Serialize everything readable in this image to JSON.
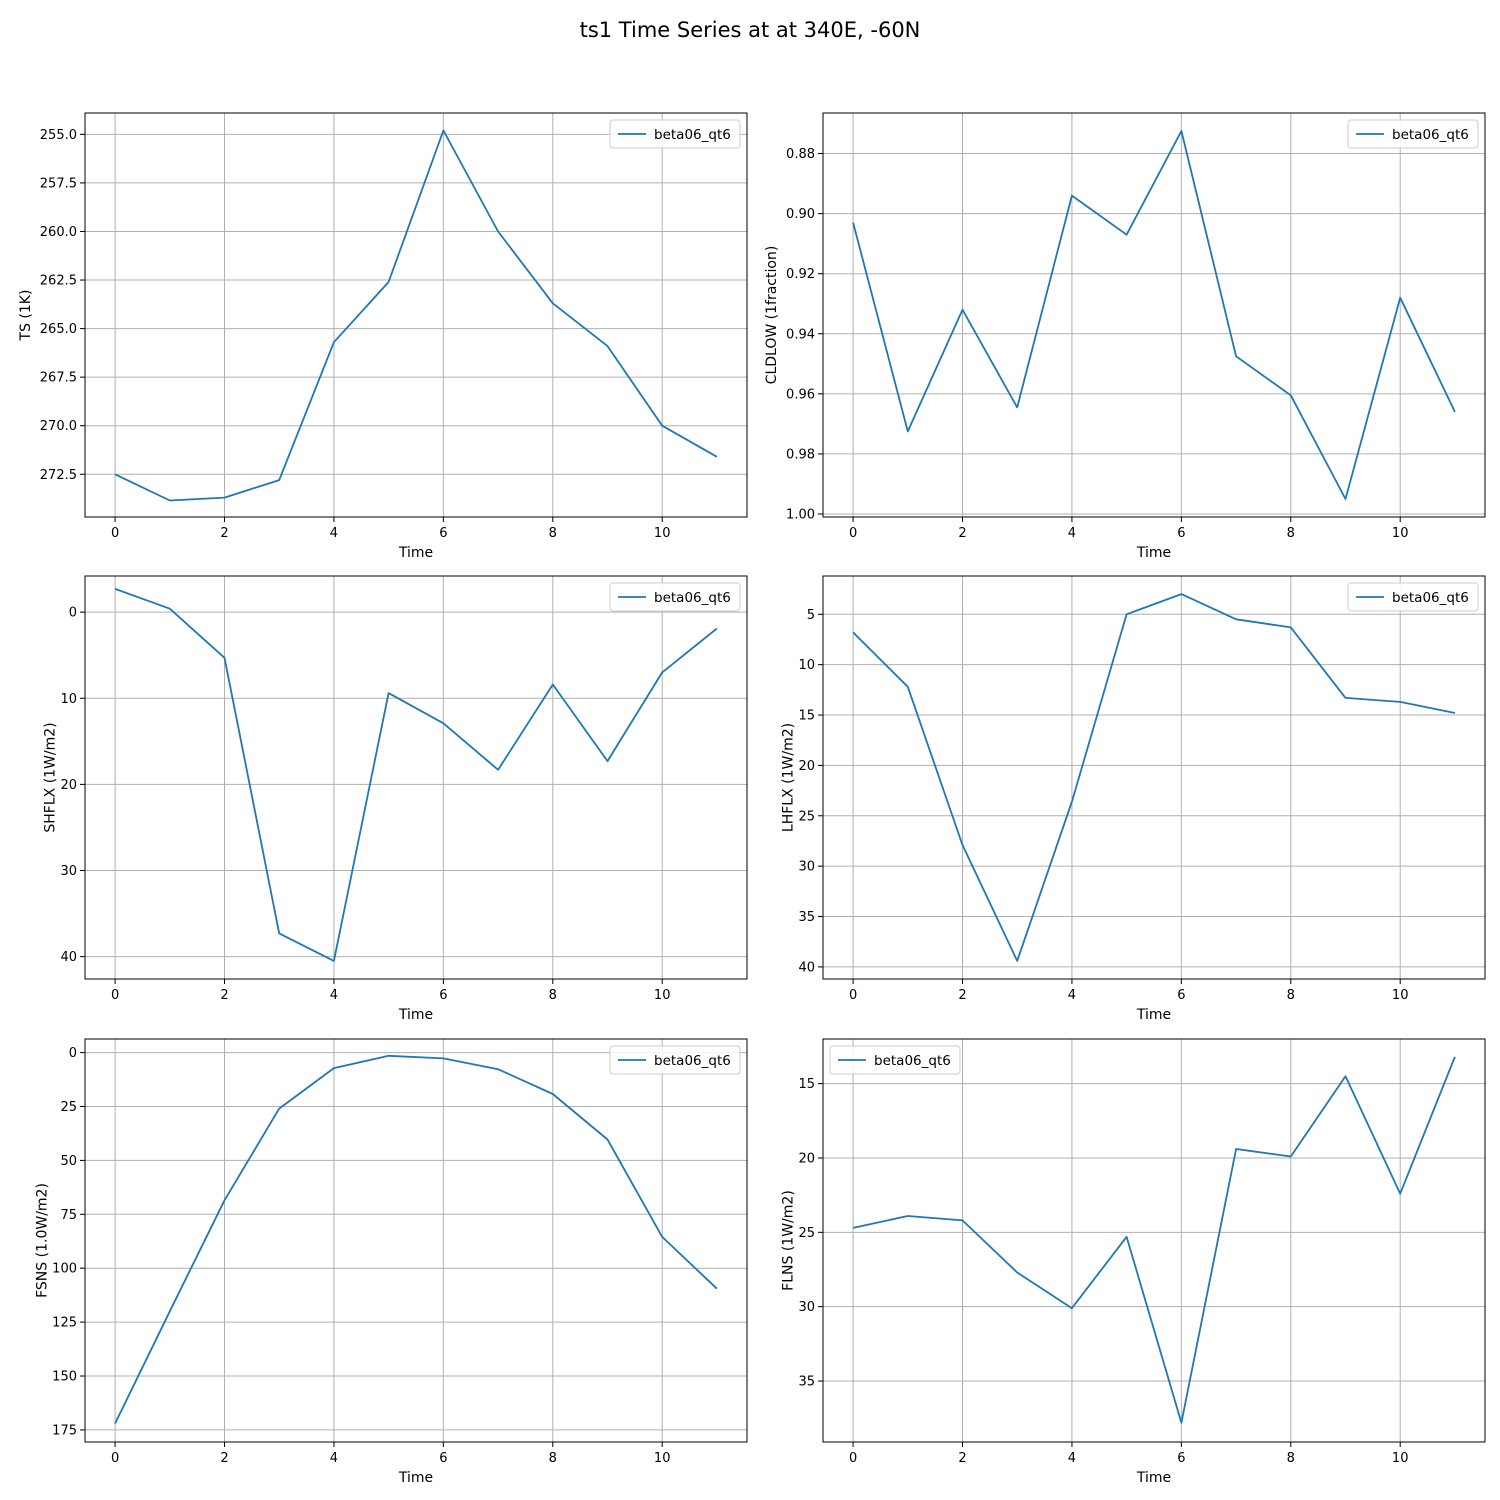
{
  "figure": {
    "suptitle": "ts1 Time Series at at 340E, -60N"
  },
  "colors": {
    "series": "#1f77b4",
    "grid": "#b0b0b0",
    "axis": "#000000"
  },
  "chart_data": [
    {
      "type": "line",
      "grid": true,
      "legend_position": "upper right",
      "xlabel": "Time",
      "ylabel": "TS (1K)",
      "xlim": [
        -0.55,
        11.55
      ],
      "ylim": [
        274.7,
        253.9
      ],
      "y_inverted": true,
      "xticks": [
        0,
        2,
        4,
        6,
        8,
        10
      ],
      "xtick_labels": [
        "0",
        "2",
        "4",
        "6",
        "8",
        "10"
      ],
      "yticks": [
        255.0,
        257.5,
        260.0,
        262.5,
        265.0,
        267.5,
        270.0,
        272.5
      ],
      "ytick_labels": [
        "255.0",
        "257.5",
        "260.0",
        "262.5",
        "265.0",
        "267.5",
        "270.0",
        "272.5"
      ],
      "x": [
        0,
        1,
        2,
        3,
        4,
        5,
        6,
        7,
        8,
        9,
        10,
        11
      ],
      "series": [
        {
          "name": "beta06_qt6",
          "values": [
            272.5,
            273.85,
            273.7,
            272.8,
            265.7,
            262.6,
            254.8,
            260.0,
            263.7,
            265.9,
            270.0,
            271.6
          ]
        }
      ]
    },
    {
      "type": "line",
      "grid": true,
      "legend_position": "upper right",
      "xlabel": "Time",
      "ylabel": "CLDLOW (1fraction)",
      "xlim": [
        -0.55,
        11.55
      ],
      "ylim": [
        1.001,
        0.8665
      ],
      "y_inverted": true,
      "xticks": [
        0,
        2,
        4,
        6,
        8,
        10
      ],
      "xtick_labels": [
        "0",
        "2",
        "4",
        "6",
        "8",
        "10"
      ],
      "yticks": [
        0.88,
        0.9,
        0.92,
        0.94,
        0.96,
        0.98,
        1.0
      ],
      "ytick_labels": [
        "0.88",
        "0.90",
        "0.92",
        "0.94",
        "0.96",
        "0.98",
        "1.00"
      ],
      "x": [
        0,
        1,
        2,
        3,
        4,
        5,
        6,
        7,
        8,
        9,
        10,
        11
      ],
      "series": [
        {
          "name": "beta06_qt6",
          "values": [
            0.903,
            0.9725,
            0.932,
            0.9645,
            0.894,
            0.907,
            0.8725,
            0.9475,
            0.9605,
            0.995,
            0.928,
            0.966
          ]
        }
      ]
    },
    {
      "type": "line",
      "grid": true,
      "legend_position": "upper right",
      "xlabel": "Time",
      "ylabel": "SHFLX (1W/m2)",
      "xlim": [
        -0.55,
        11.55
      ],
      "ylim": [
        42.6,
        -4.2
      ],
      "y_inverted": true,
      "xticks": [
        0,
        2,
        4,
        6,
        8,
        10
      ],
      "xtick_labels": [
        "0",
        "2",
        "4",
        "6",
        "8",
        "10"
      ],
      "yticks": [
        0,
        10,
        20,
        30,
        40
      ],
      "ytick_labels": [
        "0",
        "10",
        "20",
        "30",
        "40"
      ],
      "x": [
        0,
        1,
        2,
        3,
        4,
        5,
        6,
        7,
        8,
        9,
        10,
        11
      ],
      "series": [
        {
          "name": "beta06_qt6",
          "values": [
            -2.7,
            -0.4,
            5.3,
            37.3,
            40.5,
            9.4,
            12.9,
            18.3,
            8.4,
            17.3,
            7.0,
            1.9
          ]
        }
      ]
    },
    {
      "type": "line",
      "grid": true,
      "legend_position": "upper right",
      "xlabel": "Time",
      "ylabel": "LHFLX (1W/m2)",
      "xlim": [
        -0.55,
        11.55
      ],
      "ylim": [
        41.2,
        1.2
      ],
      "y_inverted": true,
      "xticks": [
        0,
        2,
        4,
        6,
        8,
        10
      ],
      "xtick_labels": [
        "0",
        "2",
        "4",
        "6",
        "8",
        "10"
      ],
      "yticks": [
        5,
        10,
        15,
        20,
        25,
        30,
        35,
        40
      ],
      "ytick_labels": [
        "5",
        "10",
        "15",
        "20",
        "25",
        "30",
        "35",
        "40"
      ],
      "x": [
        0,
        1,
        2,
        3,
        4,
        5,
        6,
        7,
        8,
        9,
        10,
        11
      ],
      "series": [
        {
          "name": "beta06_qt6",
          "values": [
            6.8,
            12.2,
            27.9,
            39.4,
            23.6,
            5.0,
            3.0,
            5.5,
            6.3,
            13.3,
            13.7,
            14.8
          ]
        }
      ]
    },
    {
      "type": "line",
      "grid": true,
      "legend_position": "upper right",
      "xlabel": "Time",
      "ylabel": "FSNS (1.0W/m2)",
      "xlim": [
        -0.55,
        11.55
      ],
      "ylim": [
        180.6,
        -6.3
      ],
      "y_inverted": true,
      "xticks": [
        0,
        2,
        4,
        6,
        8,
        10
      ],
      "xtick_labels": [
        "0",
        "2",
        "4",
        "6",
        "8",
        "10"
      ],
      "yticks": [
        0,
        25,
        50,
        75,
        100,
        125,
        150,
        175
      ],
      "ytick_labels": [
        "0",
        "25",
        "50",
        "75",
        "100",
        "125",
        "150",
        "175"
      ],
      "x": [
        0,
        1,
        2,
        3,
        4,
        5,
        6,
        7,
        8,
        9,
        10,
        11
      ],
      "series": [
        {
          "name": "beta06_qt6",
          "values": [
            172.0,
            120.0,
            68.5,
            26.0,
            7.2,
            1.5,
            2.7,
            7.7,
            19.2,
            40.3,
            85.5,
            109.5
          ]
        }
      ]
    },
    {
      "type": "line",
      "grid": true,
      "legend_position": "upper left",
      "xlabel": "Time",
      "ylabel": "FLNS (1W/m2)",
      "xlim": [
        -0.55,
        11.55
      ],
      "ylim": [
        39.1,
        12.0
      ],
      "y_inverted": true,
      "xticks": [
        0,
        2,
        4,
        6,
        8,
        10
      ],
      "xtick_labels": [
        "0",
        "2",
        "4",
        "6",
        "8",
        "10"
      ],
      "yticks": [
        15,
        20,
        25,
        30,
        35
      ],
      "ytick_labels": [
        "15",
        "20",
        "25",
        "30",
        "35"
      ],
      "x": [
        0,
        1,
        2,
        3,
        4,
        5,
        6,
        7,
        8,
        9,
        10,
        11
      ],
      "series": [
        {
          "name": "beta06_qt6",
          "values": [
            24.7,
            23.9,
            24.2,
            27.7,
            30.1,
            25.3,
            37.8,
            19.4,
            19.9,
            14.5,
            22.4,
            13.2
          ]
        }
      ]
    }
  ]
}
